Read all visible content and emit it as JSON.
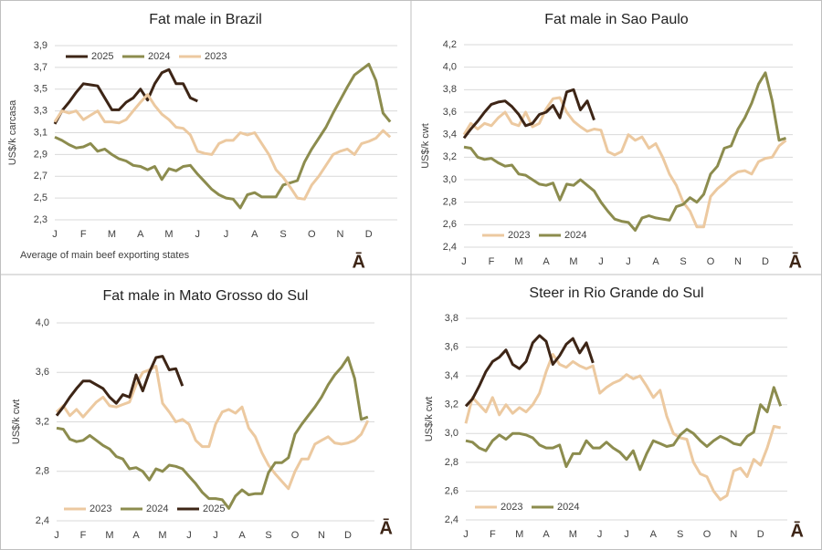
{
  "chart_data": [
    {
      "type": "line",
      "title": "Fat male in Brazil",
      "y_label": "US$/k carcasa",
      "annotation": "Average of main beef exporting states",
      "logo": "Ā",
      "legend": "top-left",
      "grid": true,
      "categories": [
        "J",
        null,
        null,
        null,
        "F",
        null,
        null,
        null,
        "M",
        null,
        null,
        null,
        "A",
        null,
        null,
        null,
        "M",
        null,
        null,
        null,
        "J",
        null,
        null,
        null,
        "J",
        null,
        null,
        null,
        "A",
        null,
        null,
        null,
        "S",
        null,
        null,
        null,
        "O",
        null,
        null,
        null,
        "N",
        null,
        null,
        null,
        "D",
        null,
        null,
        null
      ],
      "ylim": [
        2.3,
        3.9
      ],
      "yticks": [
        {
          "value": 2.3,
          "label": "2,3"
        },
        {
          "value": 2.5,
          "label": "2,5"
        },
        {
          "value": 2.7,
          "label": "2,7"
        },
        {
          "value": 2.9,
          "label": "2,9"
        },
        {
          "value": 3.1,
          "label": "3,1"
        },
        {
          "value": 3.3,
          "label": "3,3"
        },
        {
          "value": 3.5,
          "label": "3,5"
        },
        {
          "value": 3.7,
          "label": "3,7"
        },
        {
          "value": 3.9,
          "label": "3,9"
        }
      ],
      "series": [
        {
          "name": "2025",
          "color": "#3d2516",
          "values": [
            3.18,
            3.3,
            3.38,
            3.47,
            3.55,
            3.54,
            3.53,
            3.42,
            3.31,
            3.31,
            3.38,
            3.42,
            3.5,
            3.4,
            3.55,
            3.65,
            3.68,
            3.55,
            3.55,
            3.42,
            3.39,
            null,
            null,
            null,
            null,
            null,
            null,
            null,
            null,
            null,
            null,
            null,
            null,
            null,
            null,
            null,
            null,
            null,
            null,
            null,
            null,
            null,
            null,
            null,
            null,
            null,
            null,
            null
          ]
        },
        {
          "name": "2024",
          "color": "#8c8c4e",
          "values": [
            3.06,
            3.03,
            2.99,
            2.96,
            2.97,
            3.0,
            2.93,
            2.95,
            2.9,
            2.86,
            2.84,
            2.8,
            2.79,
            2.76,
            2.79,
            2.67,
            2.77,
            2.75,
            2.79,
            2.8,
            2.72,
            2.65,
            2.58,
            2.53,
            2.5,
            2.49,
            2.41,
            2.53,
            2.55,
            2.51,
            2.51,
            2.51,
            2.62,
            2.64,
            2.66,
            2.83,
            2.95,
            3.05,
            3.15,
            3.28,
            3.4,
            3.52,
            3.63,
            3.68,
            3.73,
            3.58,
            3.28,
            3.2
          ]
        },
        {
          "name": "2023",
          "color": "#ecc9a0",
          "values": [
            3.2,
            3.3,
            3.28,
            3.3,
            3.22,
            3.26,
            3.3,
            3.2,
            3.2,
            3.19,
            3.22,
            3.3,
            3.38,
            3.45,
            3.35,
            3.27,
            3.22,
            3.15,
            3.14,
            3.08,
            2.93,
            2.91,
            2.9,
            3.0,
            3.03,
            3.03,
            3.1,
            3.08,
            3.1,
            3.0,
            2.9,
            2.76,
            2.69,
            2.6,
            2.5,
            2.49,
            2.62,
            2.7,
            2.8,
            2.9,
            2.93,
            2.95,
            2.9,
            3.0,
            3.02,
            3.05,
            3.12,
            3.06
          ]
        }
      ]
    },
    {
      "type": "line",
      "title": "Fat male in Sao Paulo",
      "y_label": "US$/k cwt",
      "logo": "Ā",
      "legend": "bottom-left",
      "grid": true,
      "categories": [
        "J",
        null,
        null,
        null,
        "F",
        null,
        null,
        null,
        "M",
        null,
        null,
        null,
        "A",
        null,
        null,
        null,
        "M",
        null,
        null,
        null,
        "J",
        null,
        null,
        null,
        "J",
        null,
        null,
        null,
        "A",
        null,
        null,
        null,
        "S",
        null,
        null,
        null,
        "O",
        null,
        null,
        null,
        "N",
        null,
        null,
        null,
        "D",
        null,
        null,
        null
      ],
      "ylim": [
        2.4,
        4.2
      ],
      "yticks": [
        {
          "value": 2.4,
          "label": "2,4"
        },
        {
          "value": 2.6,
          "label": "2,6"
        },
        {
          "value": 2.8,
          "label": "2,8"
        },
        {
          "value": 3.0,
          "label": "3,0"
        },
        {
          "value": 3.2,
          "label": "3,2"
        },
        {
          "value": 3.4,
          "label": "3,4"
        },
        {
          "value": 3.6,
          "label": "3,6"
        },
        {
          "value": 3.8,
          "label": "3,8"
        },
        {
          "value": 4.0,
          "label": "4,0"
        },
        {
          "value": 4.2,
          "label": "4,2"
        }
      ],
      "series": [
        {
          "name": "2023",
          "color": "#ecc9a0",
          "values": [
            3.4,
            3.5,
            3.45,
            3.5,
            3.48,
            3.55,
            3.6,
            3.5,
            3.48,
            3.6,
            3.47,
            3.5,
            3.63,
            3.72,
            3.73,
            3.6,
            3.52,
            3.47,
            3.43,
            3.45,
            3.44,
            3.25,
            3.22,
            3.25,
            3.4,
            3.35,
            3.38,
            3.28,
            3.32,
            3.2,
            3.05,
            2.95,
            2.8,
            2.72,
            2.58,
            2.58,
            2.85,
            2.92,
            2.97,
            3.03,
            3.07,
            3.08,
            3.05,
            3.16,
            3.19,
            3.2,
            3.3,
            3.35
          ]
        },
        {
          "name": "2024",
          "color": "#8c8c4e",
          "values": [
            3.29,
            3.28,
            3.2,
            3.18,
            3.19,
            3.15,
            3.12,
            3.13,
            3.05,
            3.04,
            3.0,
            2.96,
            2.95,
            2.97,
            2.82,
            2.96,
            2.95,
            3.0,
            2.95,
            2.9,
            2.8,
            2.72,
            2.65,
            2.63,
            2.62,
            2.55,
            2.66,
            2.68,
            2.66,
            2.65,
            2.64,
            2.76,
            2.78,
            2.84,
            2.8,
            2.87,
            3.05,
            3.12,
            3.28,
            3.3,
            3.45,
            3.55,
            3.68,
            3.85,
            3.95,
            3.7,
            3.35,
            3.37
          ]
        },
        {
          "color": "#3d2516",
          "values": [
            3.37,
            3.45,
            3.52,
            3.6,
            3.67,
            3.69,
            3.7,
            3.65,
            3.58,
            3.48,
            3.5,
            3.58,
            3.6,
            3.66,
            3.55,
            3.78,
            3.8,
            3.62,
            3.7,
            3.53,
            null,
            null,
            null,
            null,
            null,
            null,
            null,
            null,
            null,
            null,
            null,
            null,
            null,
            null,
            null,
            null,
            null,
            null,
            null,
            null,
            null,
            null,
            null,
            null,
            null,
            null,
            null,
            null
          ]
        }
      ]
    },
    {
      "type": "line",
      "title": "Fat male in Mato Grosso do Sul",
      "y_label": "US$/k cwt",
      "logo": "Ā",
      "legend": "bottom-left",
      "grid": true,
      "categories": [
        "J",
        null,
        null,
        null,
        "F",
        null,
        null,
        null,
        "M",
        null,
        null,
        null,
        "A",
        null,
        null,
        null,
        "M",
        null,
        null,
        null,
        "J",
        null,
        null,
        null,
        "J",
        null,
        null,
        null,
        "A",
        null,
        null,
        null,
        "S",
        null,
        null,
        null,
        "O",
        null,
        null,
        null,
        "N",
        null,
        null,
        null,
        "D",
        null,
        null,
        null
      ],
      "ylim": [
        2.4,
        4.0
      ],
      "yticks": [
        {
          "value": 2.4,
          "label": "2,4"
        },
        {
          "value": 2.8,
          "label": "2,8"
        },
        {
          "value": 3.2,
          "label": "3,2"
        },
        {
          "value": 3.6,
          "label": "3,6"
        },
        {
          "value": 4.0,
          "label": "4,0"
        }
      ],
      "series": [
        {
          "name": "2023",
          "color": "#ecc9a0",
          "values": [
            3.28,
            3.33,
            3.25,
            3.3,
            3.24,
            3.3,
            3.36,
            3.4,
            3.33,
            3.32,
            3.34,
            3.36,
            3.5,
            3.6,
            3.62,
            3.65,
            3.35,
            3.28,
            3.2,
            3.22,
            3.18,
            3.05,
            3.0,
            3.0,
            3.18,
            3.28,
            3.3,
            3.27,
            3.32,
            3.15,
            3.08,
            2.95,
            2.85,
            2.78,
            2.72,
            2.66,
            2.8,
            2.9,
            2.9,
            3.02,
            3.05,
            3.08,
            3.03,
            3.02,
            3.03,
            3.05,
            3.1,
            3.21
          ]
        },
        {
          "name": "2024",
          "color": "#8c8c4e",
          "values": [
            3.15,
            3.14,
            3.06,
            3.04,
            3.05,
            3.09,
            3.05,
            3.01,
            2.98,
            2.92,
            2.9,
            2.82,
            2.83,
            2.8,
            2.73,
            2.82,
            2.8,
            2.85,
            2.84,
            2.82,
            2.76,
            2.7,
            2.63,
            2.58,
            2.58,
            2.57,
            2.5,
            2.6,
            2.65,
            2.61,
            2.62,
            2.62,
            2.79,
            2.87,
            2.87,
            2.91,
            3.1,
            3.18,
            3.25,
            3.32,
            3.4,
            3.5,
            3.58,
            3.64,
            3.72,
            3.55,
            3.22,
            3.24
          ]
        },
        {
          "name": "2025",
          "color": "#3d2516",
          "values": [
            3.25,
            3.32,
            3.4,
            3.47,
            3.53,
            3.53,
            3.5,
            3.47,
            3.4,
            3.35,
            3.42,
            3.4,
            3.58,
            3.45,
            3.6,
            3.72,
            3.73,
            3.62,
            3.63,
            3.49,
            null,
            null,
            null,
            null,
            null,
            null,
            null,
            null,
            null,
            null,
            null,
            null,
            null,
            null,
            null,
            null,
            null,
            null,
            null,
            null,
            null,
            null,
            null,
            null,
            null,
            null,
            null,
            null
          ]
        }
      ]
    },
    {
      "type": "line",
      "title": "Steer in Rio Grande do Sul",
      "y_label": "US$/k cwt",
      "logo": "Ā",
      "legend": "bottom-left",
      "grid": true,
      "categories": [
        "J",
        null,
        null,
        null,
        "F",
        null,
        null,
        null,
        "M",
        null,
        null,
        null,
        "A",
        null,
        null,
        null,
        "M",
        null,
        null,
        null,
        "J",
        null,
        null,
        null,
        "J",
        null,
        null,
        null,
        "A",
        null,
        null,
        null,
        "S",
        null,
        null,
        null,
        "O",
        null,
        null,
        null,
        "N",
        null,
        null,
        null,
        "D",
        null,
        null,
        null
      ],
      "ylim": [
        2.4,
        3.8
      ],
      "yticks": [
        {
          "value": 2.4,
          "label": "2,4"
        },
        {
          "value": 2.6,
          "label": "2,6"
        },
        {
          "value": 2.8,
          "label": "2,8"
        },
        {
          "value": 3.0,
          "label": "3,0"
        },
        {
          "value": 3.2,
          "label": "3,2"
        },
        {
          "value": 3.4,
          "label": "3,4"
        },
        {
          "value": 3.6,
          "label": "3,6"
        },
        {
          "value": 3.8,
          "label": "3,8"
        }
      ],
      "series": [
        {
          "name": "2023",
          "color": "#ecc9a0",
          "values": [
            3.07,
            3.25,
            3.2,
            3.15,
            3.25,
            3.13,
            3.2,
            3.14,
            3.18,
            3.15,
            3.2,
            3.28,
            3.43,
            3.55,
            3.48,
            3.46,
            3.5,
            3.47,
            3.45,
            3.47,
            3.28,
            3.32,
            3.35,
            3.37,
            3.41,
            3.38,
            3.4,
            3.33,
            3.25,
            3.3,
            3.12,
            3.0,
            2.97,
            2.96,
            2.8,
            2.72,
            2.7,
            2.6,
            2.54,
            2.57,
            2.74,
            2.76,
            2.7,
            2.82,
            2.78,
            2.9,
            3.05,
            3.04
          ]
        },
        {
          "name": "2024",
          "color": "#8c8c4e",
          "values": [
            2.95,
            2.94,
            2.9,
            2.88,
            2.95,
            2.99,
            2.96,
            3.0,
            3.0,
            2.99,
            2.97,
            2.92,
            2.9,
            2.9,
            2.92,
            2.77,
            2.86,
            2.86,
            2.95,
            2.9,
            2.9,
            2.94,
            2.9,
            2.87,
            2.82,
            2.88,
            2.75,
            2.86,
            2.95,
            2.93,
            2.91,
            2.92,
            2.99,
            3.03,
            3.0,
            2.95,
            2.91,
            2.95,
            2.98,
            2.96,
            2.93,
            2.92,
            2.98,
            3.01,
            3.2,
            3.15,
            3.32,
            3.19
          ]
        },
        {
          "color": "#3d2516",
          "values": [
            3.19,
            3.24,
            3.33,
            3.43,
            3.5,
            3.53,
            3.58,
            3.48,
            3.45,
            3.5,
            3.63,
            3.68,
            3.64,
            3.48,
            3.54,
            3.62,
            3.66,
            3.56,
            3.63,
            3.49,
            null,
            null,
            null,
            null,
            null,
            null,
            null,
            null,
            null,
            null,
            null,
            null,
            null,
            null,
            null,
            null,
            null,
            null,
            null,
            null,
            null,
            null,
            null,
            null,
            null,
            null,
            null,
            null
          ]
        }
      ]
    }
  ]
}
